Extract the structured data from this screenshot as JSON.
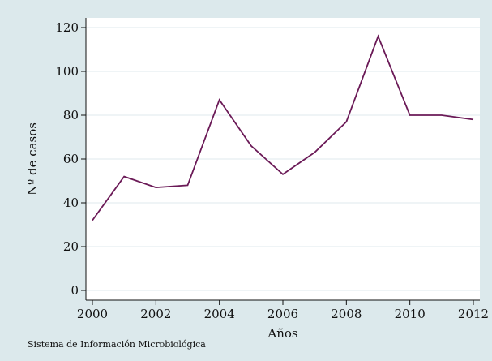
{
  "chart_data": {
    "type": "line",
    "title": "",
    "xlabel": "Años",
    "ylabel": "Nº de casos",
    "x": [
      2000,
      2001,
      2002,
      2003,
      2004,
      2005,
      2006,
      2007,
      2008,
      2009,
      2010,
      2011,
      2012
    ],
    "series": [
      {
        "values": [
          32,
          52,
          47,
          48,
          87,
          66,
          53,
          63,
          77,
          116,
          80,
          80,
          78
        ],
        "color": "#6b1a57"
      }
    ],
    "xlim": [
      2000,
      2012
    ],
    "ylim": [
      0,
      120
    ],
    "x_ticks": [
      "2000",
      "2002",
      "2004",
      "2006",
      "2008",
      "2010",
      "2012"
    ],
    "y_ticks": [
      "0",
      "20",
      "40",
      "60",
      "80",
      "100",
      "120"
    ],
    "grid": true,
    "legend": "none",
    "source": "Sistema de Información Microbiológica",
    "colors": {
      "background": "#dce9ec",
      "plot_area": "#ffffff",
      "grid": "#dfeaed",
      "axis": "#111111",
      "line": "#6b1a57"
    }
  }
}
